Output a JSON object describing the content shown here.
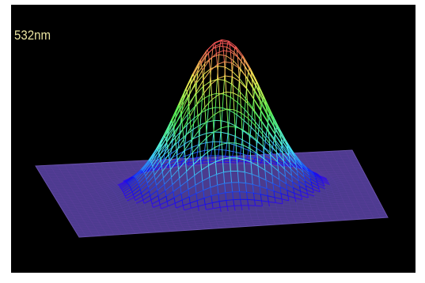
{
  "label": "532nm"
}
